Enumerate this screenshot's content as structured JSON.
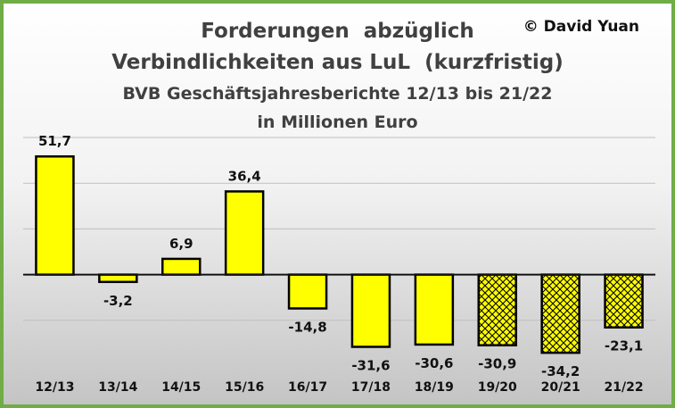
{
  "copyright": "© David Yuan",
  "chart_data": {
    "type": "bar",
    "title_lines": [
      "Forderungen  abzüglich",
      "Verbindlichkeiten aus LuL  (kurzfristig)"
    ],
    "subtitle_lines": [
      "BVB Geschäftsjahresberichte 12/13 bis 21/22",
      "in Millionen Euro"
    ],
    "categories": [
      "12/13",
      "13/14",
      "14/15",
      "15/16",
      "16/17",
      "17/18",
      "18/19",
      "19/20",
      "20/21",
      "21/22"
    ],
    "values": [
      51.7,
      -3.2,
      6.9,
      36.4,
      -14.8,
      -31.6,
      -30.6,
      -30.9,
      -34.2,
      -23.1
    ],
    "value_labels": [
      "51,7",
      "-3,2",
      "6,9",
      "36,4",
      "-14,8",
      "-31,6",
      "-30,6",
      "-30,9",
      "-34,2",
      "-23,1"
    ],
    "hatched": [
      false,
      false,
      false,
      false,
      false,
      false,
      false,
      true,
      true,
      true
    ],
    "ylim": [
      -40,
      60
    ],
    "grid": true,
    "colors": {
      "bar": "#ffff00",
      "edge": "#000000",
      "hatch": "#000000",
      "grid": "#bfbfbf",
      "frame": "#70ad47"
    }
  }
}
